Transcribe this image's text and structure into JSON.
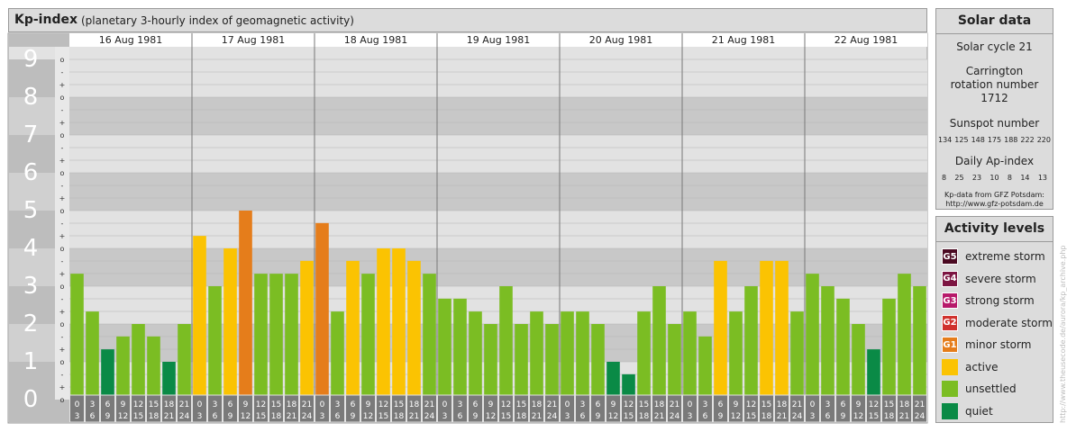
{
  "header": {
    "title": "Kp-index",
    "subtitle": "(planetary 3-hourly index of geomagnetic activity)"
  },
  "chart_data": {
    "type": "bar",
    "title": "Kp-index",
    "ylim": [
      0,
      9
    ],
    "y_ticks": [
      "0",
      "1",
      "2",
      "3",
      "4",
      "5",
      "6",
      "7",
      "8",
      "9"
    ],
    "minor_tick_labels": [
      "o",
      "+",
      "-",
      "o",
      "+",
      "-",
      "o",
      "+",
      "-",
      "o",
      "+",
      "-",
      "o",
      "+",
      "-",
      "o",
      "+",
      "-",
      "o",
      "+",
      "-",
      "o",
      "+",
      "-",
      "o",
      "+",
      "-",
      "o"
    ],
    "days": [
      "16 Aug 1981",
      "17 Aug 1981",
      "18 Aug 1981",
      "19 Aug 1981",
      "20 Aug 1981",
      "21 Aug 1981",
      "22 Aug 1981"
    ],
    "interval_top": [
      "0",
      "3",
      "6",
      "9",
      "12",
      "15",
      "18",
      "21"
    ],
    "interval_bottom": [
      "3",
      "6",
      "9",
      "12",
      "15",
      "18",
      "21",
      "24"
    ],
    "values": [
      3.33,
      2.33,
      1.33,
      1.67,
      2.0,
      1.67,
      1.0,
      2.0,
      4.33,
      3.0,
      4.0,
      5.0,
      3.33,
      3.33,
      3.33,
      3.67,
      4.67,
      2.33,
      3.67,
      3.33,
      4.0,
      4.0,
      3.67,
      3.33,
      2.67,
      2.67,
      2.33,
      2.0,
      3.0,
      2.0,
      2.33,
      2.0,
      2.33,
      2.33,
      2.0,
      1.0,
      0.67,
      2.33,
      3.0,
      2.0,
      2.33,
      1.67,
      3.67,
      2.33,
      3.0,
      3.67,
      3.67,
      2.33,
      3.33,
      3.0,
      2.67,
      2.0,
      1.33,
      2.67,
      3.33,
      3.0
    ],
    "colors": {
      "quiet": "#0a8a46",
      "unsettled": "#7bbd23",
      "active": "#fbc302",
      "minor_storm": "#e57d1b",
      "moderate_storm": "#d0312d",
      "strong_storm": "#b7196a",
      "severe_storm": "#7d1542",
      "extreme_storm": "#4b0a22"
    }
  },
  "solar": {
    "heading": "Solar data",
    "cycle": "Solar cycle 21",
    "carrington": "Carrington rotation number 1712",
    "sunspot_label": "Sunspot number",
    "sunspot_values": [
      "134",
      "125",
      "148",
      "175",
      "188",
      "222",
      "220"
    ],
    "ap_label": "Daily Ap-index",
    "ap_values": [
      "8",
      "25",
      "23",
      "10",
      "8",
      "14",
      "13"
    ],
    "source": "Kp-data from GFZ Potsdam:",
    "source_url": "http://www.gfz-potsdam.de"
  },
  "legend": {
    "heading": "Activity levels",
    "items": [
      {
        "code": "G5",
        "label": "extreme storm",
        "color": "#4b0a22"
      },
      {
        "code": "G4",
        "label": "severe storm",
        "color": "#7d1542"
      },
      {
        "code": "G3",
        "label": "strong storm",
        "color": "#b7196a"
      },
      {
        "code": "G2",
        "label": "moderate storm",
        "color": "#d0312d"
      },
      {
        "code": "G1",
        "label": "minor storm",
        "color": "#e57d1b"
      },
      {
        "code": "",
        "label": "active",
        "color": "#fbc302"
      },
      {
        "code": "",
        "label": "unsettled",
        "color": "#7bbd23"
      },
      {
        "code": "",
        "label": "quiet",
        "color": "#0a8a46"
      }
    ]
  },
  "watermark": "http://www.theusecode.de/aurora/kp_archive.php"
}
